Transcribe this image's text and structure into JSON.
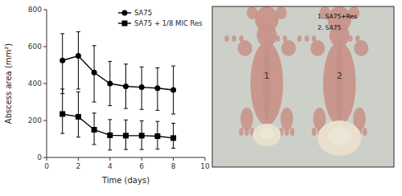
{
  "chart_data": {
    "type": "line",
    "x": [
      1,
      2,
      3,
      4,
      5,
      6,
      7,
      8
    ],
    "series": [
      {
        "name": "SA75",
        "color": "#000000",
        "marker": "circle",
        "values": [
          525,
          550,
          460,
          400,
          385,
          380,
          375,
          365
        ],
        "yerr_low": [
          180,
          180,
          160,
          120,
          120,
          120,
          120,
          130
        ],
        "yerr_high": [
          145,
          130,
          145,
          120,
          120,
          110,
          110,
          130
        ]
      },
      {
        "name": "SA75 + 1/8 MIC Res",
        "color": "#000000",
        "marker": "square",
        "values": [
          235,
          220,
          150,
          120,
          118,
          118,
          115,
          105
        ],
        "yerr_low": [
          105,
          110,
          80,
          80,
          75,
          75,
          70,
          55
        ],
        "yerr_high": [
          135,
          135,
          90,
          85,
          85,
          80,
          80,
          80
        ]
      }
    ],
    "xlabel": "Time (days)",
    "ylabel": "Abscess area (mm²)",
    "xlim": [
      0,
      10
    ],
    "ylim": [
      0,
      800
    ],
    "xticks": [
      0,
      2,
      4,
      6,
      8,
      10
    ],
    "yticks": [
      0,
      200,
      400,
      600,
      800
    ],
    "grid": false,
    "legend": "upper right",
    "annotations": [
      "1. SA75+Res",
      "2. SA75",
      "1",
      "2"
    ]
  }
}
